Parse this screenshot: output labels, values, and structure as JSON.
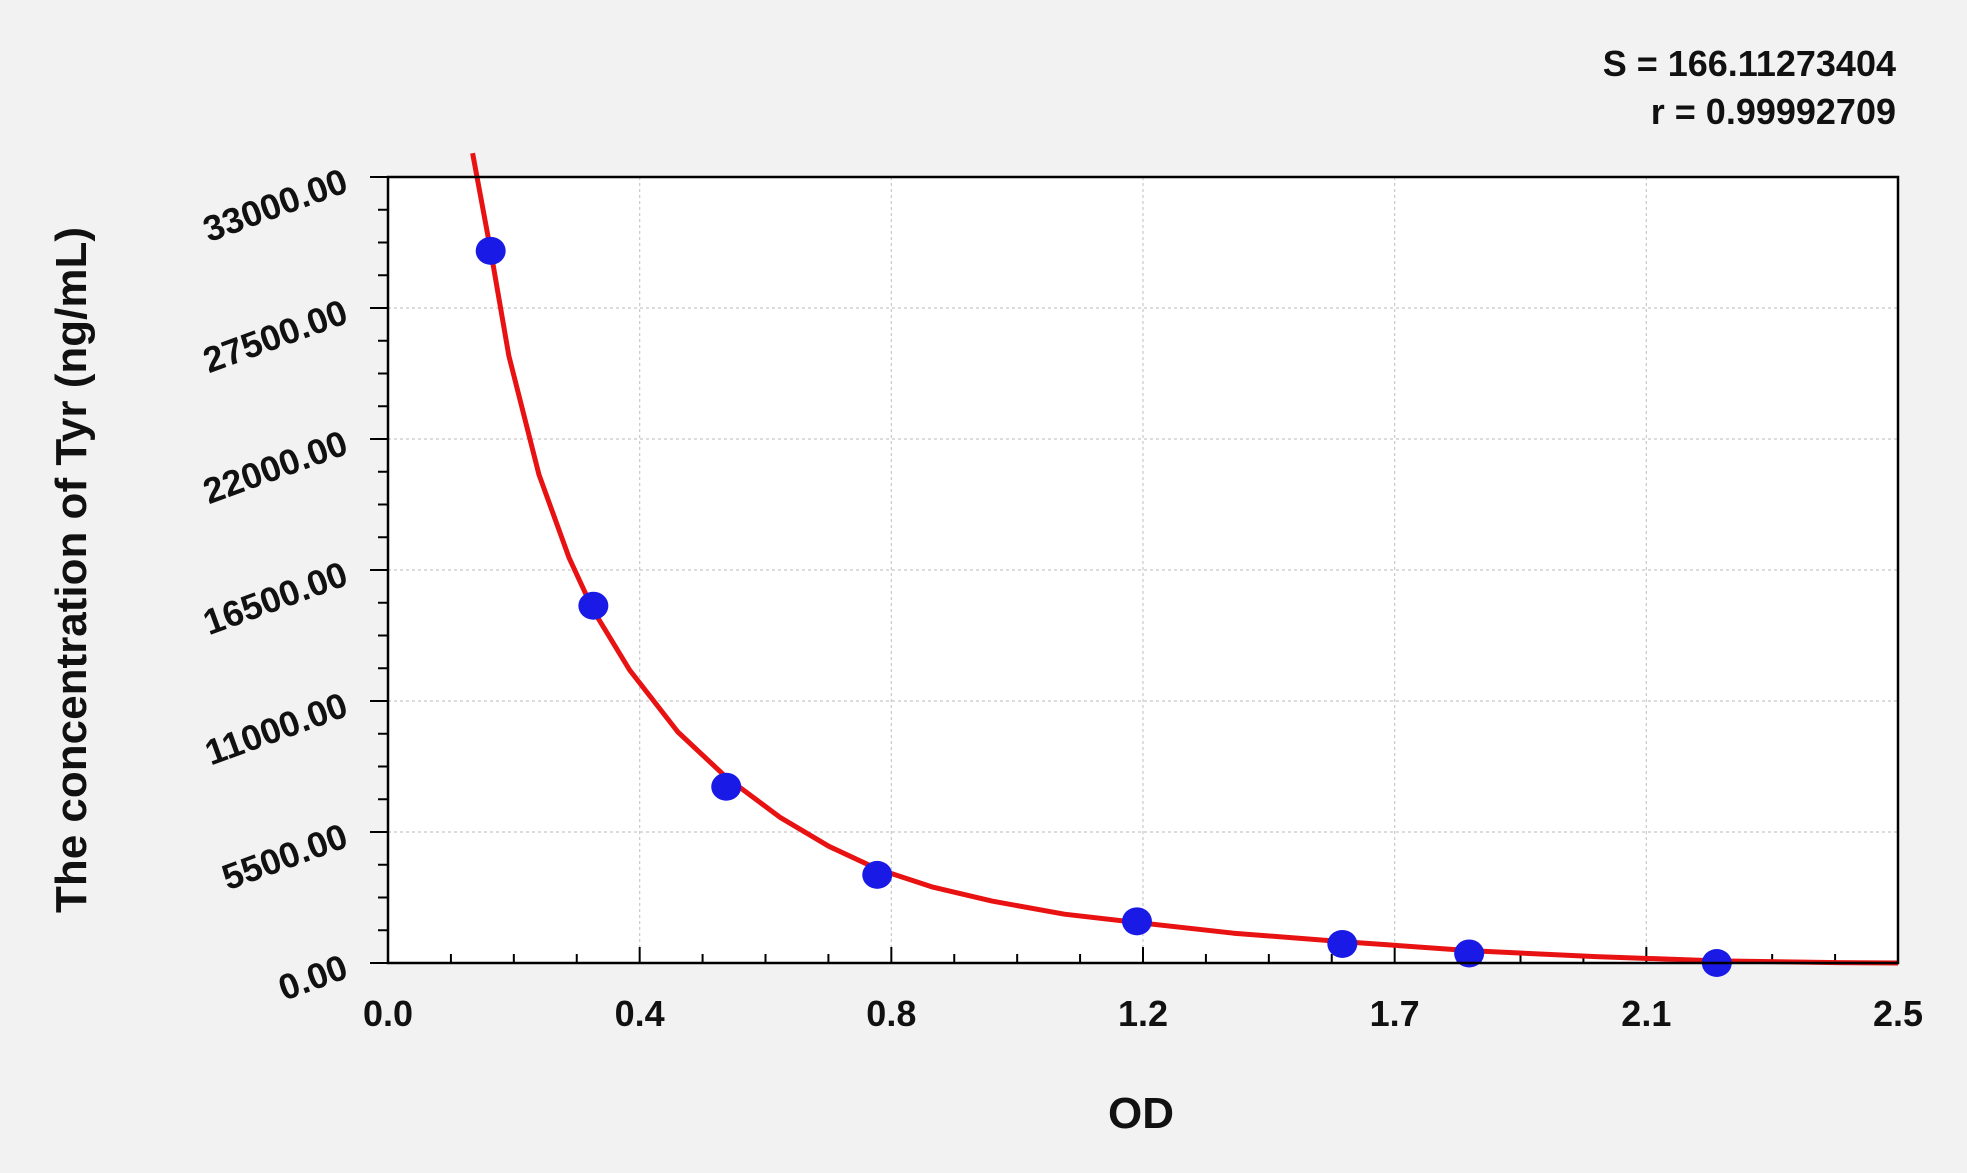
{
  "chart_data": {
    "type": "scatter",
    "title": "",
    "xlabel": "OD",
    "ylabel": "The concentration of Tyr (ng/mL)",
    "x_ticks": [
      "0.0",
      "0.4",
      "0.8",
      "1.2",
      "1.7",
      "2.1",
      "2.5"
    ],
    "y_ticks": [
      "0.00",
      "5500.00",
      "11000.00",
      "16500.00",
      "22000.00",
      "27500.00",
      "33000.00"
    ],
    "xlim": [
      0,
      2.5
    ],
    "ylim": [
      0,
      33000
    ],
    "grid": true,
    "annotations": [
      "S = 166.11273404",
      "r = 0.99992709"
    ],
    "series": [
      {
        "type": "scatter",
        "color": "#1a1ae6",
        "points": [
          {
            "x": 0.17,
            "y": 29900
          },
          {
            "x": 0.34,
            "y": 15000
          },
          {
            "x": 0.56,
            "y": 7400
          },
          {
            "x": 0.81,
            "y": 3700
          },
          {
            "x": 1.24,
            "y": 1750
          },
          {
            "x": 1.58,
            "y": 800
          },
          {
            "x": 1.79,
            "y": 400
          },
          {
            "x": 2.2,
            "y": 0
          }
        ]
      },
      {
        "type": "line",
        "color": "#e81212",
        "points": [
          {
            "x": 0.14,
            "y": 34000
          },
          {
            "x": 0.17,
            "y": 29900
          },
          {
            "x": 0.2,
            "y": 25500
          },
          {
            "x": 0.25,
            "y": 20500
          },
          {
            "x": 0.3,
            "y": 17000
          },
          {
            "x": 0.34,
            "y": 14800
          },
          {
            "x": 0.4,
            "y": 12300
          },
          {
            "x": 0.48,
            "y": 9700
          },
          {
            "x": 0.56,
            "y": 7800
          },
          {
            "x": 0.65,
            "y": 6100
          },
          {
            "x": 0.73,
            "y": 4900
          },
          {
            "x": 0.81,
            "y": 3950
          },
          {
            "x": 0.9,
            "y": 3200
          },
          {
            "x": 1.0,
            "y": 2600
          },
          {
            "x": 1.12,
            "y": 2050
          },
          {
            "x": 1.24,
            "y": 1700
          },
          {
            "x": 1.4,
            "y": 1250
          },
          {
            "x": 1.58,
            "y": 900
          },
          {
            "x": 1.79,
            "y": 520
          },
          {
            "x": 2.0,
            "y": 270
          },
          {
            "x": 2.2,
            "y": 90
          },
          {
            "x": 2.4,
            "y": 15
          },
          {
            "x": 2.5,
            "y": 0
          }
        ]
      }
    ]
  }
}
